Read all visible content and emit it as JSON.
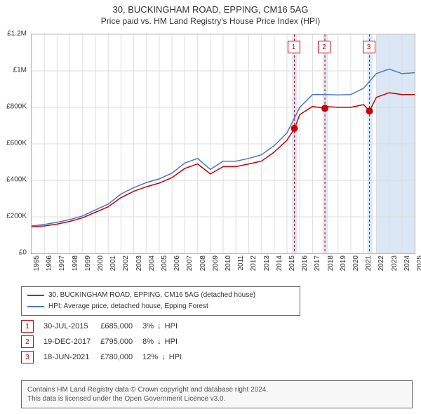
{
  "title": "30, BUCKINGHAM ROAD, EPPING, CM16 5AG",
  "subtitle": "Price paid vs. HM Land Registry's House Price Index (HPI)",
  "chart": {
    "type": "line",
    "background_color": "#ffffff",
    "plot_border_color": "#999999",
    "grid_color": "#dddddd",
    "xlim": [
      1995,
      2025
    ],
    "ylim": [
      0,
      1200000
    ],
    "ytick_step": 200000,
    "yticks": [
      "£0",
      "£200K",
      "£400K",
      "£600K",
      "£800K",
      "£1M",
      "£1.2M"
    ],
    "xticks": [
      1995,
      1996,
      1997,
      1998,
      1999,
      2000,
      2001,
      2002,
      2003,
      2004,
      2005,
      2006,
      2007,
      2008,
      2009,
      2010,
      2011,
      2012,
      2013,
      2014,
      2015,
      2016,
      2017,
      2018,
      2019,
      2020,
      2021,
      2022,
      2023,
      2024,
      2025
    ],
    "label_fontsize": 10,
    "line_width": 1.5,
    "highlight_band_color": "#dbe7f5",
    "highlight_bands": [
      [
        2015.4,
        2015.8
      ],
      [
        2017.8,
        2018.2
      ],
      [
        2021.3,
        2021.7
      ],
      [
        2022.0,
        2025.0
      ]
    ],
    "event_vline_color": "#cc0000",
    "event_vline_dash": "3,3",
    "series": [
      {
        "name": "property",
        "label": "30, BUCKINGHAM ROAD, EPPING, CM16 5AG (detached house)",
        "color": "#cc0000",
        "x": [
          1995,
          1996,
          1997,
          1998,
          1999,
          2000,
          2001,
          2002,
          2003,
          2004,
          2005,
          2006,
          2007,
          2008,
          2009,
          2010,
          2011,
          2012,
          2013,
          2014,
          2015,
          2015.6,
          2016,
          2017,
          2017.97,
          2018,
          2019,
          2020,
          2021,
          2021.46,
          2022,
          2023,
          2024,
          2025
        ],
        "y": [
          145000,
          150000,
          160000,
          175000,
          195000,
          225000,
          255000,
          305000,
          340000,
          365000,
          385000,
          415000,
          465000,
          490000,
          435000,
          475000,
          475000,
          490000,
          505000,
          555000,
          620000,
          685000,
          760000,
          805000,
          795000,
          805000,
          800000,
          800000,
          815000,
          780000,
          855000,
          880000,
          870000,
          870000
        ],
        "markers": [
          {
            "x": 2015.58,
            "y": 685000
          },
          {
            "x": 2017.97,
            "y": 795000
          },
          {
            "x": 2021.46,
            "y": 780000
          }
        ],
        "marker_color": "#cc0000",
        "marker_size": 5
      },
      {
        "name": "hpi",
        "label": "HPI: Average price, detached house, Epping Forest",
        "color": "#4a77c4",
        "x": [
          1995,
          1996,
          1997,
          1998,
          1999,
          2000,
          2001,
          2002,
          2003,
          2004,
          2005,
          2006,
          2007,
          2008,
          2009,
          2010,
          2011,
          2012,
          2013,
          2014,
          2015,
          2016,
          2017,
          2018,
          2019,
          2020,
          2021,
          2022,
          2023,
          2024,
          2025
        ],
        "y": [
          150000,
          158000,
          170000,
          185000,
          205000,
          238000,
          270000,
          325000,
          360000,
          388000,
          408000,
          440000,
          495000,
          520000,
          460000,
          505000,
          505000,
          520000,
          540000,
          590000,
          660000,
          800000,
          870000,
          870000,
          868000,
          870000,
          905000,
          985000,
          1010000,
          985000,
          990000
        ]
      }
    ],
    "event_markers": [
      {
        "id": "1",
        "x": 2015.58
      },
      {
        "id": "2",
        "x": 2017.97
      },
      {
        "id": "3",
        "x": 2021.46
      }
    ]
  },
  "legend": {
    "rows": [
      {
        "color": "#cc0000",
        "label": "30, BUCKINGHAM ROAD, EPPING, CM16 5AG (detached house)"
      },
      {
        "color": "#4a77c4",
        "label": "HPI: Average price, detached house, Epping Forest"
      }
    ]
  },
  "events": [
    {
      "id": "1",
      "date": "30-JUL-2015",
      "price": "£685,000",
      "delta": "3%",
      "direction": "↓",
      "vs": "HPI"
    },
    {
      "id": "2",
      "date": "19-DEC-2017",
      "price": "£795,000",
      "delta": "8%",
      "direction": "↓",
      "vs": "HPI"
    },
    {
      "id": "3",
      "date": "18-JUN-2021",
      "price": "£780,000",
      "delta": "12%",
      "direction": "↓",
      "vs": "HPI"
    }
  ],
  "footer": {
    "line1": "Contains HM Land Registry data © Crown copyright and database right 2024.",
    "line2": "This data is licensed under the Open Government Licence v3.0."
  }
}
